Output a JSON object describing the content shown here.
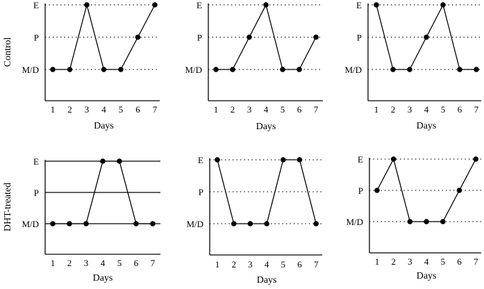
{
  "row_labels": [
    "Control",
    "DHT-treated"
  ],
  "chart_data": [
    {
      "type": "line",
      "group": "Control",
      "x": [
        1,
        2,
        3,
        4,
        5,
        6,
        7
      ],
      "xlabel": "Days",
      "y_categories": [
        "M/D",
        "P",
        "E"
      ],
      "values": [
        "M/D",
        "M/D",
        "E",
        "M/D",
        "M/D",
        "P",
        "E"
      ],
      "gridlines": "dotted"
    },
    {
      "type": "line",
      "group": "Control",
      "x": [
        1,
        2,
        3,
        4,
        5,
        6,
        7
      ],
      "xlabel": "Days",
      "y_categories": [
        "M/D",
        "P",
        "E"
      ],
      "values": [
        "M/D",
        "M/D",
        "P",
        "E",
        "M/D",
        "M/D",
        "P"
      ],
      "gridlines": "dotted"
    },
    {
      "type": "line",
      "group": "Control",
      "x": [
        1,
        2,
        3,
        4,
        5,
        6,
        7
      ],
      "xlabel": "Days",
      "y_categories": [
        "M/D",
        "P",
        "E"
      ],
      "values": [
        "E",
        "M/D",
        "M/D",
        "P",
        "E",
        "M/D",
        "M/D"
      ],
      "gridlines": "dotted"
    },
    {
      "type": "line",
      "group": "DHT-treated",
      "x": [
        1,
        2,
        3,
        4,
        5,
        6,
        7
      ],
      "xlabel": "Days",
      "y_categories": [
        "M/D",
        "P",
        "E"
      ],
      "values": [
        "M/D",
        "M/D",
        "M/D",
        "E",
        "E",
        "M/D",
        "M/D"
      ],
      "gridlines": "solid"
    },
    {
      "type": "line",
      "group": "DHT-treated",
      "x": [
        1,
        2,
        3,
        4,
        5,
        6,
        7
      ],
      "xlabel": "Days",
      "y_categories": [
        "M/D",
        "P",
        "E"
      ],
      "values": [
        "E",
        "M/D",
        "M/D",
        "M/D",
        "E",
        "E",
        "M/D"
      ],
      "gridlines": "dotted"
    },
    {
      "type": "line",
      "group": "DHT-treated",
      "x": [
        1,
        2,
        3,
        4,
        5,
        6,
        7
      ],
      "xlabel": "Days",
      "y_categories": [
        "M/D",
        "P",
        "E"
      ],
      "values": [
        "P",
        "E",
        "M/D",
        "M/D",
        "M/D",
        "P",
        "E"
      ],
      "gridlines": "dotted"
    }
  ]
}
